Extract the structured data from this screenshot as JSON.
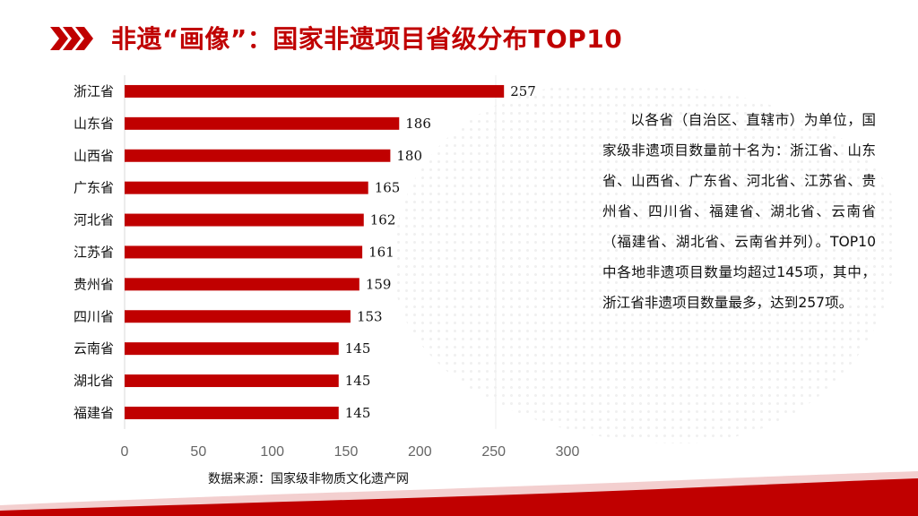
{
  "header": {
    "title": "非遗“画像”：国家非遗项目省级分布TOP10"
  },
  "description": "以各省（自治区、直辖市）为单位，国家级非遗项目数量前十名为：浙江省、山东省、山西省、广东省、河北省、江苏省、贵州省、四川省、福建省、湖北省、云南省（福建省、湖北省、云南省并列）。TOP10中各地非遗项目数量均超过145项，其中，浙江省非遗项目数量最多，达到257项。",
  "source_note": "数据来源：国家级非物质文化遗产网",
  "colors": {
    "accent": "#c00000",
    "bar": "#c00000",
    "text": "#111111",
    "tick": "#666666"
  },
  "chart_data": {
    "type": "bar",
    "orientation": "horizontal",
    "categories": [
      "浙江省",
      "山东省",
      "山西省",
      "广东省",
      "河北省",
      "江苏省",
      "贵州省",
      "四川省",
      "云南省",
      "湖北省",
      "福建省"
    ],
    "values": [
      257,
      186,
      180,
      165,
      162,
      161,
      159,
      153,
      145,
      145,
      145
    ],
    "xlim": [
      0,
      300
    ],
    "xticks": [
      "0",
      "50",
      "100",
      "150",
      "200",
      "250",
      "300"
    ],
    "data_labels": true,
    "grid": false,
    "title": "",
    "xlabel": "",
    "ylabel": ""
  }
}
